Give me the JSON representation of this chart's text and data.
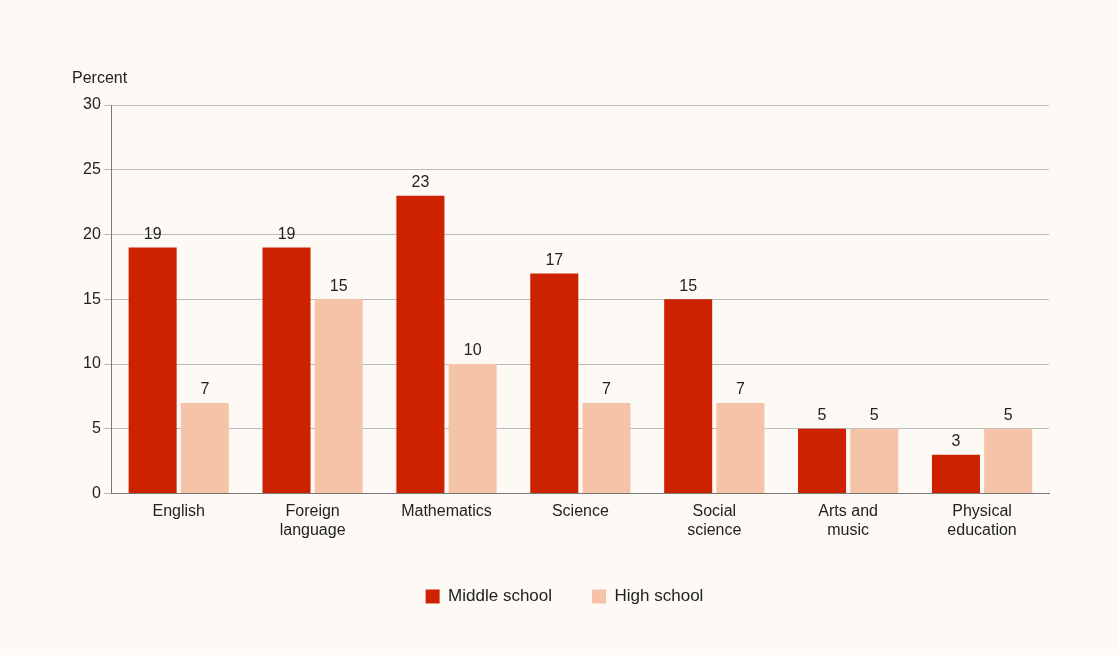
{
  "chart_data": {
    "type": "bar",
    "ylabel": "Percent",
    "categories": [
      "English",
      "Foreign language",
      "Mathematics",
      "Science",
      "Social science",
      "Arts and music",
      "Physical education"
    ],
    "series": [
      {
        "name": "Middle school",
        "color": "#cc2200",
        "values": [
          19,
          19,
          23,
          17,
          15,
          5,
          3
        ]
      },
      {
        "name": "High school",
        "color": "#f5c4a8",
        "values": [
          7,
          15,
          10,
          7,
          7,
          5,
          5
        ]
      }
    ],
    "ylim": [
      0,
      30
    ],
    "yticks": [
      0,
      5,
      10,
      15,
      20,
      25,
      30
    ],
    "grid": "y",
    "legend": "bottom",
    "data_labels": true
  }
}
